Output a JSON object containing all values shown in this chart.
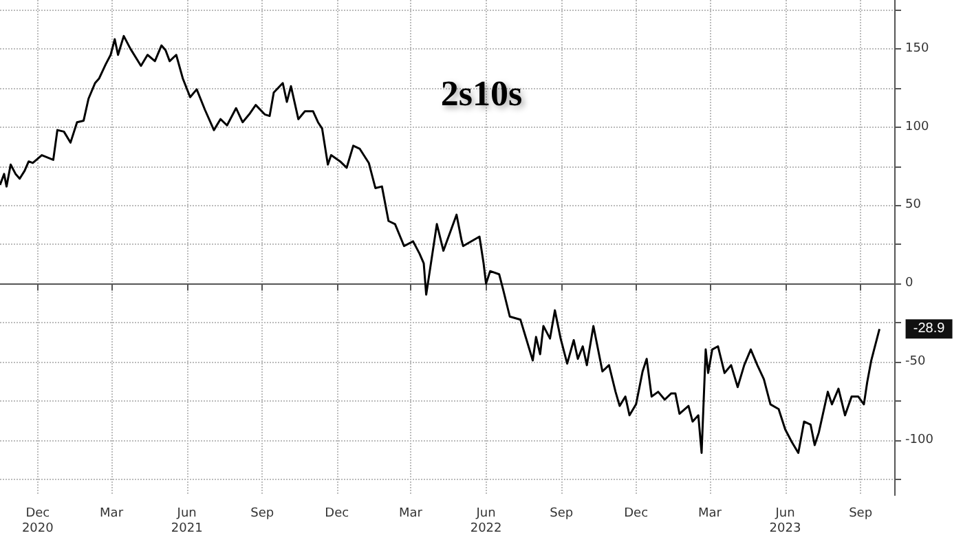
{
  "chart_data": {
    "type": "line",
    "title": "2s10s",
    "x": [
      "2020-10-30",
      "2020-11-04",
      "2020-11-07",
      "2020-11-12",
      "2020-11-18",
      "2020-11-23",
      "2020-11-29",
      "2020-12-04",
      "2020-12-09",
      "2020-12-20",
      "2021-01-03",
      "2021-01-08",
      "2021-01-16",
      "2021-01-24",
      "2021-02-01",
      "2021-02-09",
      "2021-02-15",
      "2021-02-23",
      "2021-02-28",
      "2021-03-08",
      "2021-03-14",
      "2021-03-19",
      "2021-03-23",
      "2021-03-30",
      "2021-04-07",
      "2021-04-20",
      "2021-04-28",
      "2021-05-07",
      "2021-05-15",
      "2021-05-20",
      "2021-05-25",
      "2021-06-02",
      "2021-06-10",
      "2021-06-19",
      "2021-06-27",
      "2021-07-07",
      "2021-07-18",
      "2021-07-26",
      "2021-08-03",
      "2021-08-14",
      "2021-08-22",
      "2021-08-30",
      "2021-09-07",
      "2021-09-18",
      "2021-09-24",
      "2021-09-29",
      "2021-10-10",
      "2021-10-15",
      "2021-10-20",
      "2021-10-29",
      "2021-11-06",
      "2021-11-16",
      "2021-11-22",
      "2021-11-27",
      "2021-12-04",
      "2021-12-08",
      "2021-12-19",
      "2021-12-27",
      "2022-01-04",
      "2022-01-12",
      "2022-01-23",
      "2022-01-31",
      "2022-02-08",
      "2022-02-16",
      "2022-02-24",
      "2022-03-07",
      "2022-03-18",
      "2022-03-26",
      "2022-03-31",
      "2022-04-03",
      "2022-04-16",
      "2022-04-24",
      "2022-05-10",
      "2022-05-16",
      "2022-05-18",
      "2022-06-07",
      "2022-06-12",
      "2022-06-15",
      "2022-06-20",
      "2022-07-01",
      "2022-07-06",
      "2022-07-14",
      "2022-07-27",
      "2022-08-11",
      "2022-08-15",
      "2022-08-20",
      "2022-08-24",
      "2022-09-01",
      "2022-09-07",
      "2022-09-14",
      "2022-09-22",
      "2022-09-30",
      "2022-10-05",
      "2022-10-11",
      "2022-10-16",
      "2022-10-24",
      "2022-11-04",
      "2022-11-12",
      "2022-11-20",
      "2022-11-25",
      "2022-12-02",
      "2022-12-07",
      "2022-12-15",
      "2022-12-23",
      "2022-12-28",
      "2023-01-03",
      "2023-01-11",
      "2023-01-19",
      "2023-01-27",
      "2023-02-01",
      "2023-02-06",
      "2023-02-17",
      "2023-02-22",
      "2023-03-01",
      "2023-03-05",
      "2023-03-10",
      "2023-03-13",
      "2023-03-18",
      "2023-03-25",
      "2023-04-02",
      "2023-04-10",
      "2023-04-18",
      "2023-04-26",
      "2023-05-04",
      "2023-05-12",
      "2023-05-20",
      "2023-05-28",
      "2023-06-07",
      "2023-06-15",
      "2023-06-23",
      "2023-07-01",
      "2023-07-08",
      "2023-07-16",
      "2023-07-21",
      "2023-07-26",
      "2023-08-06",
      "2023-08-11",
      "2023-08-19",
      "2023-08-27",
      "2023-09-04",
      "2023-09-12",
      "2023-09-19",
      "2023-09-23",
      "2023-09-28",
      "2023-10-08"
    ],
    "series": [
      {
        "color": "#000000",
        "values": [
          63,
          70,
          62,
          76,
          70,
          67,
          72,
          78,
          77,
          82,
          79,
          98,
          97,
          90,
          103,
          104,
          118,
          128,
          131,
          140,
          146,
          156,
          146,
          158,
          150,
          139,
          146,
          142,
          152,
          149,
          142,
          146,
          131,
          119,
          124,
          111,
          98,
          105,
          101,
          112,
          103,
          108,
          114,
          108,
          107,
          122,
          128,
          116,
          126,
          105,
          110,
          110,
          103,
          99,
          76,
          82,
          78,
          74,
          88,
          86,
          77,
          61,
          62,
          40,
          38,
          24,
          27,
          19,
          13,
          -7,
          38,
          21,
          44,
          28,
          24,
          30,
          13,
          0,
          8,
          6,
          -4,
          -21,
          -23,
          -49,
          -34,
          -45,
          -27,
          -35,
          -17,
          -35,
          -51,
          -36,
          -48,
          -40,
          -52,
          -27,
          -56,
          -52,
          -69,
          -78,
          -72,
          -84,
          -77,
          -56,
          -48,
          -72,
          -69,
          -74,
          -70,
          -70,
          -83,
          -78,
          -88,
          -84,
          -108,
          -42,
          -57,
          -42,
          -40,
          -57,
          -52,
          -66,
          -52,
          -42,
          -52,
          -61,
          -77,
          -80,
          -93,
          -101,
          -108,
          -88,
          -90,
          -103,
          -95,
          -69,
          -77,
          -67,
          -84,
          -72,
          -72,
          -77,
          -63,
          -49,
          -28.9
        ]
      }
    ],
    "xlim": [
      "2020-10-30",
      "2023-10-26"
    ],
    "xticks": [
      {
        "value": "2020-12-15",
        "label": "Dec\n2020"
      },
      {
        "value": "2021-03-15",
        "label": "Mar"
      },
      {
        "value": "2021-06-15",
        "label": "Jun\n2021"
      },
      {
        "value": "2021-09-15",
        "label": "Sep"
      },
      {
        "value": "2021-12-15",
        "label": "Dec"
      },
      {
        "value": "2022-03-15",
        "label": "Mar"
      },
      {
        "value": "2022-06-15",
        "label": "Jun\n2022"
      },
      {
        "value": "2022-09-15",
        "label": "Sep"
      },
      {
        "value": "2022-12-15",
        "label": "Dec"
      },
      {
        "value": "2023-03-15",
        "label": "Mar"
      },
      {
        "value": "2023-06-15",
        "label": "Jun\n2023"
      },
      {
        "value": "2023-09-15",
        "label": "Sep"
      }
    ],
    "ylim": [
      -135,
      181
    ],
    "yticks": [
      {
        "value": -125,
        "label": null
      },
      -100,
      {
        "value": -75,
        "label": null
      },
      -50,
      {
        "value": -25,
        "label": null
      },
      0,
      {
        "value": 25,
        "label": null
      },
      50,
      {
        "value": 75,
        "label": null
      },
      100,
      {
        "value": 125,
        "label": null
      },
      150,
      {
        "value": 175,
        "label": null
      }
    ],
    "annotations": [
      {
        "text": "-28.9",
        "x": "2023-10-08",
        "y": -28.9
      }
    ],
    "grid": true,
    "marker": "none",
    "line_style": "solid"
  }
}
